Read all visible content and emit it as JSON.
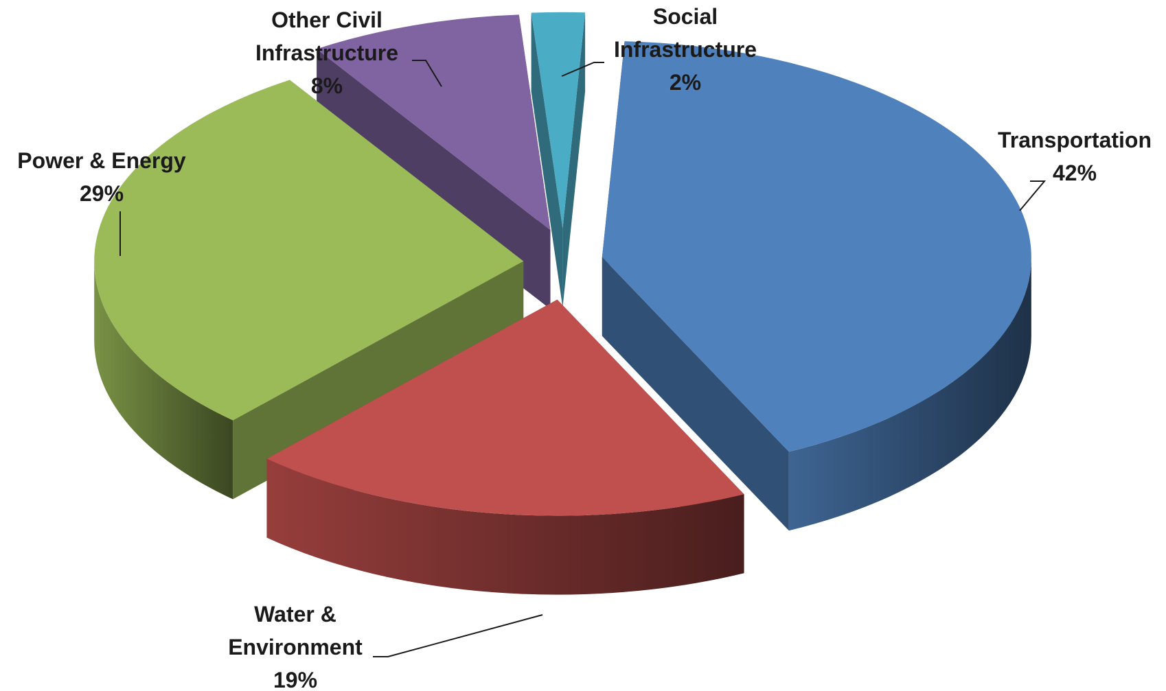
{
  "chart_data": {
    "type": "pie",
    "style": "3d-exploded",
    "title": "",
    "legend": "none",
    "slices": [
      {
        "name": "Transportation",
        "label_lines": [
          "Transportation"
        ],
        "value": 42,
        "value_label": "42%",
        "color": "#4f81bd"
      },
      {
        "name": "Water & Environment",
        "label_lines": [
          "Water &",
          "Environment"
        ],
        "value": 19,
        "value_label": "19%",
        "color": "#c0504d"
      },
      {
        "name": "Power & Energy",
        "label_lines": [
          "Power & Energy"
        ],
        "value": 29,
        "value_label": "29%",
        "color": "#9bbb59"
      },
      {
        "name": "Other Civil Infrastructure",
        "label_lines": [
          "Other Civil",
          "Infrastructure"
        ],
        "value": 8,
        "value_label": "8%",
        "color": "#8064a2"
      },
      {
        "name": "Social Infrastructure",
        "label_lines": [
          "Social",
          "Infrastructure"
        ],
        "value": 2,
        "value_label": "2%",
        "color": "#4bacc6"
      }
    ]
  }
}
